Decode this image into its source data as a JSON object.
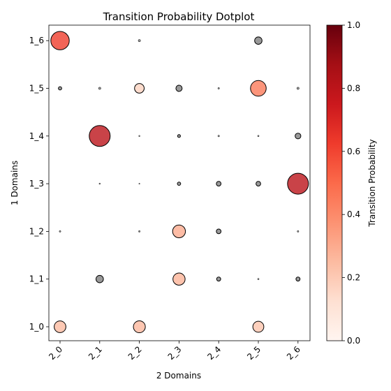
{
  "chart_data": {
    "type": "scatter",
    "title": "Transition Probability Dotplot",
    "xlabel": "2 Domains",
    "ylabel": "1 Domains",
    "x_categories": [
      "2_0",
      "2_1",
      "2_2",
      "2_3",
      "2_4",
      "2_5",
      "2_6"
    ],
    "y_categories": [
      "1_0",
      "1_1",
      "1_2",
      "1_3",
      "1_4",
      "1_5",
      "1_6"
    ],
    "colorbar": {
      "label": "Transition Probability",
      "range": [
        0.0,
        1.0
      ],
      "ticks": [
        "0.0",
        "0.2",
        "0.4",
        "0.6",
        "0.8",
        "1.0"
      ],
      "colormap": "Reds"
    },
    "zero_color": "#808080",
    "points": [
      {
        "x": "2_0",
        "y": "1_6",
        "p": 0.62
      },
      {
        "x": "2_2",
        "y": "1_6",
        "p": 0.01
      },
      {
        "x": "2_5",
        "y": "1_6",
        "p": 0.1
      },
      {
        "x": "2_0",
        "y": "1_5",
        "p": 0.02
      },
      {
        "x": "2_1",
        "y": "1_5",
        "p": 0.01
      },
      {
        "x": "2_2",
        "y": "1_5",
        "p": 0.17
      },
      {
        "x": "2_3",
        "y": "1_5",
        "p": 0.07
      },
      {
        "x": "2_4",
        "y": "1_5",
        "p": 0.005
      },
      {
        "x": "2_5",
        "y": "1_5",
        "p": 0.45
      },
      {
        "x": "2_6",
        "y": "1_5",
        "p": 0.01
      },
      {
        "x": "2_1",
        "y": "1_4",
        "p": 0.8
      },
      {
        "x": "2_2",
        "y": "1_4",
        "p": 0.003
      },
      {
        "x": "2_3",
        "y": "1_4",
        "p": 0.015
      },
      {
        "x": "2_4",
        "y": "1_4",
        "p": 0.005
      },
      {
        "x": "2_5",
        "y": "1_4",
        "p": 0.004
      },
      {
        "x": "2_6",
        "y": "1_4",
        "p": 0.06
      },
      {
        "x": "2_1",
        "y": "1_3",
        "p": 0.003
      },
      {
        "x": "2_2",
        "y": "1_3",
        "p": 0.002
      },
      {
        "x": "2_3",
        "y": "1_3",
        "p": 0.02
      },
      {
        "x": "2_4",
        "y": "1_3",
        "p": 0.04
      },
      {
        "x": "2_5",
        "y": "1_3",
        "p": 0.04
      },
      {
        "x": "2_6",
        "y": "1_3",
        "p": 0.8
      },
      {
        "x": "2_0",
        "y": "1_2",
        "p": 0.005
      },
      {
        "x": "2_2",
        "y": "1_2",
        "p": 0.005
      },
      {
        "x": "2_3",
        "y": "1_2",
        "p": 0.3
      },
      {
        "x": "2_4",
        "y": "1_2",
        "p": 0.04
      },
      {
        "x": "2_6",
        "y": "1_2",
        "p": 0.005
      },
      {
        "x": "2_1",
        "y": "1_1",
        "p": 0.1
      },
      {
        "x": "2_3",
        "y": "1_1",
        "p": 0.27
      },
      {
        "x": "2_4",
        "y": "1_1",
        "p": 0.03
      },
      {
        "x": "2_5",
        "y": "1_1",
        "p": 0.004
      },
      {
        "x": "2_6",
        "y": "1_1",
        "p": 0.03
      },
      {
        "x": "2_0",
        "y": "1_0",
        "p": 0.25
      },
      {
        "x": "2_2",
        "y": "1_0",
        "p": 0.26
      },
      {
        "x": "2_5",
        "y": "1_0",
        "p": 0.22
      }
    ]
  }
}
